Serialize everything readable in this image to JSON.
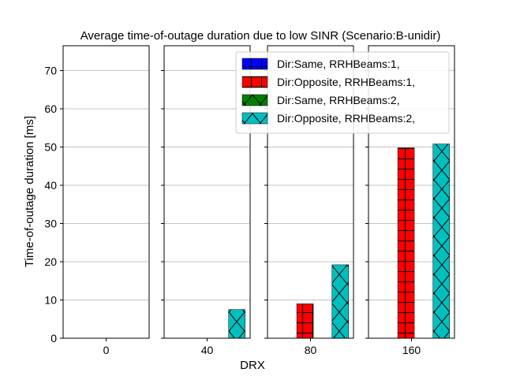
{
  "chart_data": {
    "type": "bar",
    "title": "Average time-of-outage duration due to low SINR (Scenario:B-unidir)",
    "xlabel": "DRX",
    "ylabel": "Time-of-outage duration [ms]",
    "ylim": [
      0,
      76.5
    ],
    "yticks": [
      0,
      10,
      20,
      30,
      40,
      50,
      60,
      70
    ],
    "grid": "horizontal",
    "legend_position": "upper-right",
    "panels": [
      "0",
      "40",
      "80",
      "160"
    ],
    "series": [
      {
        "name": "Dir:Same, RRHBeams:1,",
        "color": "#0000ff",
        "hatch": "plus",
        "values": [
          0,
          0,
          0,
          0
        ]
      },
      {
        "name": "Dir:Opposite, RRHBeams:1,",
        "color": "#ff0000",
        "hatch": "plus",
        "values": [
          0,
          0,
          9.0,
          49.8
        ]
      },
      {
        "name": "Dir:Same, RRHBeams:2,",
        "color": "#008000",
        "hatch": "cross",
        "values": [
          0,
          0,
          0,
          0
        ]
      },
      {
        "name": "Dir:Opposite, RRHBeams:2,",
        "color": "#00bfbf",
        "hatch": "cross",
        "values": [
          0,
          7.5,
          19.2,
          50.8
        ]
      }
    ]
  }
}
